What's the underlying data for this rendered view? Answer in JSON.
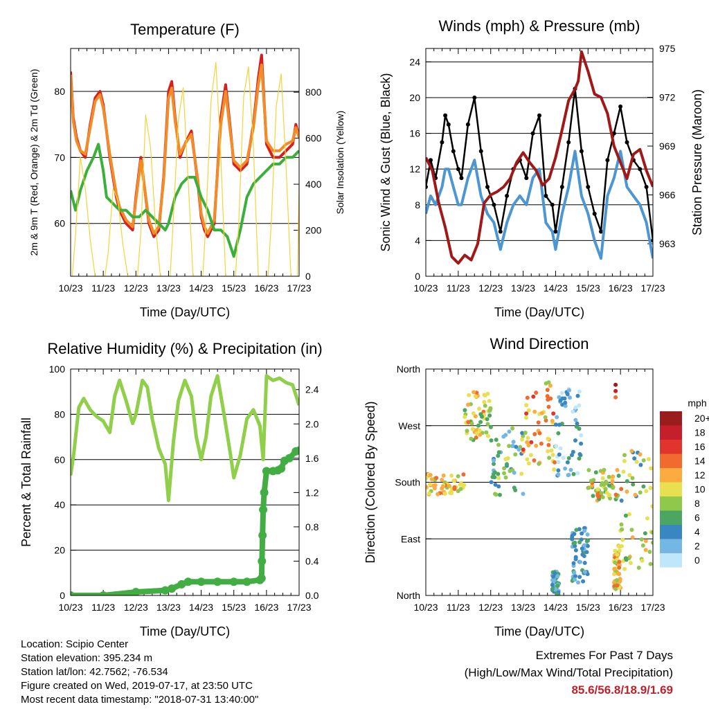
{
  "chart_data": [
    {
      "type": "line",
      "title": "Temperature (F)",
      "xlabel": "Time (Day/UTC)",
      "ylabel": "2m & 9m T (Red, Orange) & 2m Td (Green)",
      "ylabel_right": "Solar Insolation (Yellow)",
      "x_ticks": [
        "10/23",
        "11/23",
        "12/23",
        "13/23",
        "14/23",
        "15/23",
        "16/23",
        "17/23"
      ],
      "y_ticks": [
        60,
        70,
        80
      ],
      "y_ticks_right": [
        0,
        200,
        400,
        600,
        800
      ],
      "ylim": [
        52,
        86.5
      ],
      "ylim_right": [
        0,
        990
      ],
      "grid": "horizontal",
      "series": [
        {
          "color": "#d62020",
          "x": [
            0,
            0.08,
            0.18,
            0.3,
            0.45,
            0.6,
            0.75,
            0.9,
            1.0,
            1.2,
            1.4,
            1.5,
            1.7,
            1.9,
            2.0,
            2.15,
            2.25,
            2.4,
            2.55,
            2.7,
            2.85,
            3.0,
            3.1,
            3.2,
            3.35,
            3.5,
            3.7,
            3.9,
            4.0,
            4.1,
            4.2,
            4.4,
            4.6,
            4.75,
            4.9,
            5.0,
            5.2,
            5.4,
            5.6,
            5.75,
            5.85,
            6.0,
            6.2,
            6.4,
            6.6,
            6.8,
            6.9,
            7.0
          ],
          "y": [
            83,
            76,
            73,
            71,
            70,
            75,
            79,
            80,
            78,
            70,
            64,
            62,
            60,
            59,
            64,
            70,
            66,
            60,
            58,
            59,
            67,
            80,
            81.5,
            76,
            70,
            72,
            74,
            66,
            61,
            59,
            58,
            60,
            76,
            81,
            74,
            69,
            68,
            69,
            75,
            82,
            85.5,
            72,
            70,
            70,
            71,
            72,
            75,
            73
          ]
        },
        {
          "color": "#f28c28",
          "x": [
            0,
            0.08,
            0.18,
            0.3,
            0.45,
            0.6,
            0.75,
            0.9,
            1.0,
            1.2,
            1.4,
            1.5,
            1.7,
            1.9,
            2.0,
            2.15,
            2.25,
            2.4,
            2.55,
            2.7,
            2.85,
            3.0,
            3.1,
            3.2,
            3.35,
            3.5,
            3.7,
            3.9,
            4.0,
            4.1,
            4.2,
            4.4,
            4.6,
            4.75,
            4.9,
            5.0,
            5.2,
            5.4,
            5.6,
            5.75,
            5.85,
            6.0,
            6.2,
            6.4,
            6.6,
            6.8,
            6.9,
            7.0
          ],
          "y": [
            82.5,
            75.5,
            72.5,
            71,
            70.5,
            74.5,
            78.5,
            79.5,
            77.5,
            70.5,
            64.5,
            62.5,
            60.5,
            59.5,
            63.5,
            69.5,
            66,
            60.5,
            58.5,
            59.5,
            66.5,
            79,
            80.5,
            75.5,
            70.5,
            72,
            73.5,
            66.5,
            61.5,
            59.5,
            58.5,
            60.5,
            75,
            80,
            73.5,
            69.5,
            68.5,
            69.5,
            74.5,
            81,
            84,
            72.5,
            71,
            71,
            72,
            72.5,
            74.5,
            73
          ]
        },
        {
          "color": "#3ab03a",
          "x": [
            0,
            0.15,
            0.3,
            0.5,
            0.7,
            0.85,
            1.0,
            1.1,
            1.3,
            1.5,
            1.7,
            1.9,
            2.1,
            2.3,
            2.5,
            2.7,
            2.9,
            3.0,
            3.2,
            3.4,
            3.6,
            3.8,
            4.0,
            4.2,
            4.4,
            4.6,
            4.8,
            5.0,
            5.2,
            5.4,
            5.6,
            5.8,
            6.0,
            6.2,
            6.4,
            6.6,
            6.8,
            7.0
          ],
          "y": [
            65,
            62,
            65,
            68,
            70,
            72,
            68,
            64,
            63,
            62,
            62,
            61,
            61,
            62,
            61,
            60,
            59,
            60,
            64,
            66,
            67,
            67,
            64,
            62,
            59,
            59,
            58,
            55,
            59,
            64,
            66,
            67,
            68,
            69,
            69,
            70,
            70,
            71
          ]
        },
        {
          "color": "#f5d238",
          "axis": "right",
          "x": [
            0,
            0.05,
            0.15,
            0.3,
            0.45,
            0.6,
            0.75,
            0.85,
            0.95,
            1.05,
            1.15,
            1.3,
            1.45,
            1.6,
            1.75,
            1.85,
            1.95,
            2.05,
            2.15,
            2.3,
            2.45,
            2.6,
            2.75,
            2.85,
            2.95,
            3.05,
            3.15,
            3.3,
            3.45,
            3.6,
            3.75,
            3.85,
            3.95,
            4.05,
            4.15,
            4.3,
            4.45,
            4.6,
            4.75,
            4.85,
            4.95,
            5.05,
            5.15,
            5.3,
            5.45,
            5.6,
            5.75,
            5.85,
            5.95,
            6.05,
            6.15,
            6.3,
            6.45,
            6.6,
            6.75,
            6.85,
            6.95,
            7.0
          ],
          "y": [
            0,
            0,
            180,
            520,
            380,
            160,
            0,
            0,
            0,
            0,
            100,
            380,
            330,
            140,
            0,
            0,
            0,
            0,
            190,
            700,
            560,
            220,
            0,
            0,
            0,
            0,
            260,
            680,
            820,
            420,
            0,
            0,
            0,
            0,
            250,
            760,
            930,
            520,
            0,
            0,
            0,
            0,
            230,
            780,
            910,
            560,
            0,
            0,
            0,
            0,
            240,
            740,
            880,
            480,
            0,
            0,
            0,
            400
          ]
        }
      ]
    },
    {
      "type": "line",
      "title": "Winds (mph) & Pressure (mb)",
      "xlabel": "Time (Day/UTC)",
      "ylabel": "Sonic Wind & Gust (Blue, Black)",
      "ylabel_right": "Station Pressure (Maroon)",
      "x_ticks": [
        "10/23",
        "11/23",
        "12/23",
        "13/23",
        "14/23",
        "15/23",
        "16/23",
        "17/23"
      ],
      "y_ticks": [
        0,
        4,
        8,
        12,
        16,
        20,
        24
      ],
      "y_ticks_right": [
        963,
        966,
        969,
        972,
        975
      ],
      "ylim": [
        0,
        25.5
      ],
      "ylim_right": [
        961,
        975
      ],
      "grid": "horizontal",
      "series": [
        {
          "color": "#000000",
          "marker": "dot",
          "x": [
            0,
            0.15,
            0.3,
            0.5,
            0.6,
            0.7,
            0.85,
            1.0,
            1.1,
            1.3,
            1.5,
            1.7,
            1.9,
            2.1,
            2.3,
            2.5,
            2.7,
            2.9,
            3.1,
            3.3,
            3.5,
            3.7,
            3.9,
            4.0,
            4.2,
            4.4,
            4.6,
            4.8,
            5.0,
            5.2,
            5.4,
            5.6,
            5.8,
            6.0,
            6.2,
            6.4,
            6.6,
            6.8,
            7.0
          ],
          "y": [
            10,
            13,
            11,
            15,
            18,
            17,
            14,
            12,
            11,
            17,
            20,
            14,
            10,
            8,
            5,
            9,
            12,
            13,
            11,
            16,
            18,
            9,
            8,
            5,
            10,
            15,
            21,
            14,
            10,
            7,
            5,
            13,
            16,
            19,
            15,
            13,
            12,
            10,
            4
          ]
        },
        {
          "color": "#4c96d2",
          "x": [
            0,
            0.15,
            0.3,
            0.5,
            0.6,
            0.7,
            0.85,
            1.0,
            1.1,
            1.3,
            1.5,
            1.7,
            1.9,
            2.1,
            2.3,
            2.5,
            2.7,
            2.9,
            3.1,
            3.3,
            3.5,
            3.7,
            3.9,
            4.0,
            4.2,
            4.4,
            4.6,
            4.8,
            5.0,
            5.2,
            5.4,
            5.6,
            5.8,
            6.0,
            6.2,
            6.4,
            6.6,
            6.8,
            7.0
          ],
          "y": [
            7,
            9,
            8,
            10,
            12,
            12,
            10,
            8,
            8,
            11,
            13,
            9,
            7,
            6,
            3,
            6,
            8,
            9,
            8,
            11,
            12,
            6,
            5,
            3,
            7,
            10,
            14,
            9,
            7,
            4,
            2,
            9,
            11,
            14,
            10,
            9,
            8,
            6,
            2
          ]
        },
        {
          "color": "#a01818",
          "axis": "right",
          "x": [
            0,
            0.2,
            0.4,
            0.6,
            0.8,
            1.0,
            1.2,
            1.4,
            1.6,
            1.8,
            2.0,
            2.2,
            2.4,
            2.6,
            2.8,
            3.0,
            3.2,
            3.4,
            3.6,
            3.8,
            4.0,
            4.2,
            4.4,
            4.6,
            4.7,
            4.8,
            5.0,
            5.2,
            5.4,
            5.6,
            5.8,
            6.0,
            6.2,
            6.4,
            6.6,
            6.8,
            7.0
          ],
          "y": [
            968.3,
            967.5,
            965.5,
            964,
            962.2,
            961.8,
            962.3,
            962,
            963,
            965.5,
            966,
            966.2,
            966.5,
            967,
            968,
            968.6,
            968,
            967.5,
            966.6,
            967,
            968.3,
            970,
            971.8,
            972.5,
            973,
            974.8,
            973.6,
            972.2,
            972,
            971,
            969,
            968,
            967,
            968.5,
            968.8,
            967.5,
            966.5
          ]
        }
      ]
    },
    {
      "type": "line",
      "title": "Relative Humidity (%) & Precipitation (in)",
      "xlabel": "Time (Day/UTC)",
      "ylabel": "Percent & Total Rainfall",
      "x_ticks": [
        "10/23",
        "11/23",
        "12/23",
        "13/23",
        "14/23",
        "15/23",
        "16/23",
        "17/23"
      ],
      "y_ticks": [
        0,
        20,
        40,
        60,
        80,
        100
      ],
      "y_ticks_right": [
        "0.0",
        "0.4",
        "0.8",
        "1.2",
        "1.6",
        "2.0",
        "2.4"
      ],
      "ylim": [
        0,
        100
      ],
      "ylim_right": [
        0,
        2.64
      ],
      "grid": "horizontal",
      "series": [
        {
          "color": "#8fcf4a",
          "x": [
            0,
            0.1,
            0.25,
            0.4,
            0.6,
            0.8,
            1.0,
            1.2,
            1.35,
            1.5,
            1.7,
            1.9,
            2.0,
            2.2,
            2.35,
            2.5,
            2.7,
            2.9,
            3.0,
            3.15,
            3.3,
            3.5,
            3.7,
            3.85,
            4.0,
            4.15,
            4.3,
            4.5,
            4.7,
            4.9,
            5.0,
            5.2,
            5.4,
            5.6,
            5.8,
            5.9,
            6.0,
            6.2,
            6.4,
            6.6,
            6.8,
            7.0
          ],
          "y": [
            53,
            63,
            83,
            87,
            82,
            79,
            77,
            72,
            88,
            95,
            86,
            76,
            80,
            95,
            92,
            78,
            65,
            58,
            42,
            68,
            86,
            95,
            88,
            70,
            60,
            70,
            88,
            97,
            80,
            62,
            52,
            62,
            78,
            82,
            75,
            60,
            97,
            95,
            96,
            94,
            93,
            84
          ]
        },
        {
          "color": "#42ad42",
          "marker": "dot",
          "axis": "right",
          "x": [
            0,
            1.0,
            2.0,
            2.9,
            3.1,
            3.4,
            3.6,
            4.0,
            4.5,
            5.0,
            5.4,
            5.8,
            5.85,
            5.86,
            5.88,
            5.9,
            5.93,
            6.0,
            6.2,
            6.35,
            6.45,
            6.55,
            6.7,
            6.9,
            7.0
          ],
          "y": [
            0,
            0,
            0.04,
            0.06,
            0.08,
            0.13,
            0.16,
            0.16,
            0.16,
            0.16,
            0.16,
            0.18,
            0.2,
            0.4,
            0.7,
            1.0,
            1.2,
            1.45,
            1.45,
            1.46,
            1.48,
            1.57,
            1.6,
            1.68,
            1.69
          ]
        }
      ]
    },
    {
      "type": "scatter",
      "title": "Wind Direction",
      "xlabel": "Time (Day/UTC)",
      "ylabel": "Direction (Colored By Speed)",
      "x_ticks": [
        "10/23",
        "11/23",
        "12/23",
        "13/23",
        "14/23",
        "15/23",
        "16/23",
        "17/23"
      ],
      "y_ticks": [
        "North",
        "East",
        "South",
        "West",
        "North"
      ],
      "ylim": [
        0,
        360
      ],
      "grid": "horizontal",
      "legend_title": "mph",
      "legend_labels": [
        "20+",
        "18",
        "16",
        "14",
        "12",
        "10",
        "8",
        "6",
        "4",
        "2",
        "0"
      ],
      "legend_colors": [
        "#9b1c1c",
        "#c41f2a",
        "#e0342c",
        "#f26b2e",
        "#fbab40",
        "#e8e051",
        "#8fc84a",
        "#4aa660",
        "#3a86c0",
        "#74b7e3",
        "#bfe6fa"
      ],
      "clusters": [
        {
          "x_range": [
            0.0,
            1.2
          ],
          "dir_range": [
            160,
            195
          ],
          "speed": [
            8,
            14
          ]
        },
        {
          "x_range": [
            1.2,
            2.0
          ],
          "dir_range": [
            245,
            325
          ],
          "speed": [
            6,
            14
          ]
        },
        {
          "x_range": [
            2.0,
            3.0
          ],
          "dir_range": [
            160,
            270
          ],
          "speed": [
            2,
            10
          ]
        },
        {
          "x_range": [
            3.0,
            4.0
          ],
          "dir_range": [
            200,
            340
          ],
          "speed": [
            8,
            16
          ]
        },
        {
          "x_range": [
            3.9,
            4.1
          ],
          "dir_range": [
            0,
            40
          ],
          "speed": [
            2,
            6
          ]
        },
        {
          "x_range": [
            4.0,
            4.8
          ],
          "dir_range": [
            190,
            330
          ],
          "speed": [
            0,
            6
          ]
        },
        {
          "x_range": [
            4.5,
            5.0
          ],
          "dir_range": [
            20,
            110
          ],
          "speed": [
            2,
            6
          ]
        },
        {
          "x_range": [
            5.0,
            6.1
          ],
          "dir_range": [
            150,
            200
          ],
          "speed": [
            6,
            14
          ]
        },
        {
          "x_range": [
            5.8,
            6.0
          ],
          "dir_range": [
            10,
            80
          ],
          "speed": [
            8,
            14
          ]
        },
        {
          "x_range": [
            6.0,
            7.0
          ],
          "dir_range": [
            40,
            240
          ],
          "speed": [
            4,
            12
          ]
        }
      ],
      "high_points": [
        {
          "x": 5.85,
          "dir": 335,
          "speed": 20
        },
        {
          "x": 5.85,
          "dir": 325,
          "speed": 18
        },
        {
          "x": 5.85,
          "dir": 315,
          "speed": 14
        }
      ]
    }
  ],
  "info": {
    "location": "Location: Scipio Center",
    "elevation": "Station elevation: 395.234 m",
    "latlon": "Station lat/lon: 42.7562; -76.534",
    "created": "Figure created on Wed, 2019-07-17, at 23:50 UTC",
    "recent": "Most recent data timestamp: \"2018-07-31 13:40:00\""
  },
  "extremes": {
    "title": "Extremes For Past 7 Days",
    "subtitle": "(High/Low/Max Wind/Total Precipitation)",
    "values": "85.6/56.8/18.9/1.69"
  }
}
